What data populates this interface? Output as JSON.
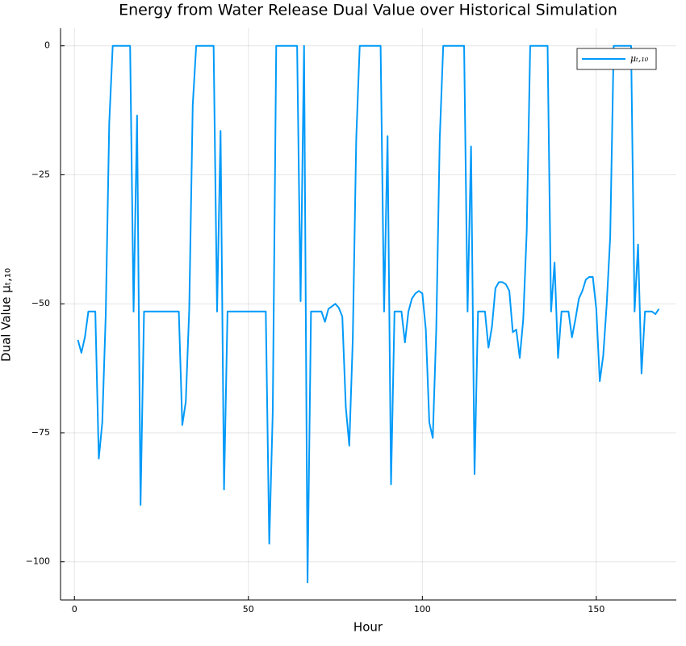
{
  "chart_data": {
    "type": "line",
    "title": "Energy from Water Release Dual Value over Historical Simulation",
    "x_label": "Hour",
    "y_label": "Dual Value μₜ,₁₀",
    "xlim": [
      -4,
      173
    ],
    "ylim": [
      -107.4,
      3.4
    ],
    "xticks": [
      0,
      50,
      100,
      150
    ],
    "yticks": [
      {
        "value": -100,
        "label": "−100"
      },
      {
        "value": -75,
        "label": "−75"
      },
      {
        "value": -50,
        "label": "−50"
      },
      {
        "value": -25,
        "label": "−25"
      },
      0
    ],
    "grid": true,
    "legend": "top-right",
    "x": [
      1,
      2,
      3,
      4,
      5,
      6,
      7,
      8,
      9,
      10,
      11,
      12,
      13,
      14,
      15,
      16,
      17,
      18,
      19,
      20,
      21,
      22,
      23,
      24,
      25,
      26,
      27,
      28,
      29,
      30,
      31,
      32,
      33,
      34,
      35,
      36,
      37,
      38,
      39,
      40,
      41,
      42,
      43,
      44,
      45,
      46,
      47,
      48,
      49,
      50,
      51,
      52,
      53,
      54,
      55,
      56,
      57,
      58,
      59,
      60,
      61,
      62,
      63,
      64,
      65,
      66,
      67,
      68,
      69,
      70,
      71,
      72,
      73,
      74,
      75,
      76,
      77,
      78,
      79,
      80,
      81,
      82,
      83,
      84,
      85,
      86,
      87,
      88,
      89,
      90,
      91,
      92,
      93,
      94,
      95,
      96,
      97,
      98,
      99,
      100,
      101,
      102,
      103,
      104,
      105,
      106,
      107,
      108,
      109,
      110,
      111,
      112,
      113,
      114,
      115,
      116,
      117,
      118,
      119,
      120,
      121,
      122,
      123,
      124,
      125,
      126,
      127,
      128,
      129,
      130,
      131,
      132,
      133,
      134,
      135,
      136,
      137,
      138,
      139,
      140,
      141,
      142,
      143,
      144,
      145,
      146,
      147,
      148,
      149,
      150,
      151,
      152,
      153,
      154,
      155,
      156,
      157,
      158,
      159,
      160,
      161,
      162,
      163,
      164,
      165,
      166,
      167,
      168
    ],
    "series": [
      {
        "name": "μₜ,₁₀",
        "color": "#009af9",
        "values": [
          -57,
          -59.5,
          -56.5,
          -51.5,
          -51.5,
          -51.5,
          -80,
          -73,
          -52,
          -15,
          0,
          0,
          0,
          0,
          0,
          0,
          -51.5,
          -13.5,
          -89,
          -51.5,
          -51.5,
          -51.5,
          -51.5,
          -51.5,
          -51.5,
          -51.5,
          -51.5,
          -51.5,
          -51.5,
          -51.5,
          -73.5,
          -69,
          -51,
          -11.5,
          0,
          0,
          0,
          0,
          0,
          0,
          -51.5,
          -16.5,
          -86,
          -51.5,
          -51.5,
          -51.5,
          -51.5,
          -51.5,
          -51.5,
          -51.5,
          -51.5,
          -51.5,
          -51.5,
          -51.5,
          -51.5,
          -96.5,
          -71,
          0,
          0,
          0,
          0,
          0,
          0,
          0,
          -49.5,
          0,
          -104,
          -51.5,
          -51.5,
          -51.5,
          -51.5,
          -53.5,
          -51,
          -50.5,
          -50,
          -50.8,
          -52.5,
          -70,
          -77.5,
          -57,
          -18,
          0,
          0,
          0,
          0,
          0,
          0,
          0,
          -51.5,
          -17.5,
          -85,
          -51.5,
          -51.5,
          -51.5,
          -57.5,
          -51.5,
          -49,
          -48,
          -47.5,
          -48,
          -55,
          -73,
          -76,
          -55,
          -18,
          0,
          0,
          0,
          0,
          0,
          0,
          0,
          -51.5,
          -19.5,
          -83,
          -51.5,
          -51.5,
          -51.5,
          -58.5,
          -54.5,
          -47,
          -45.8,
          -45.8,
          -46.2,
          -47.5,
          -55.5,
          -55,
          -60.5,
          -53,
          -36,
          0,
          0,
          0,
          0,
          0,
          0,
          -51.5,
          -42,
          -60.5,
          -51.5,
          -51.5,
          -51.5,
          -56.5,
          -53,
          -49,
          -47.5,
          -45.3,
          -44.8,
          -44.8,
          -51,
          -65,
          -60,
          -50,
          -37,
          0,
          0,
          0,
          0,
          0,
          0,
          -51.5,
          -38.5,
          -63.5,
          -51.5,
          -51.5,
          -51.5,
          -52,
          -51
        ]
      }
    ]
  }
}
